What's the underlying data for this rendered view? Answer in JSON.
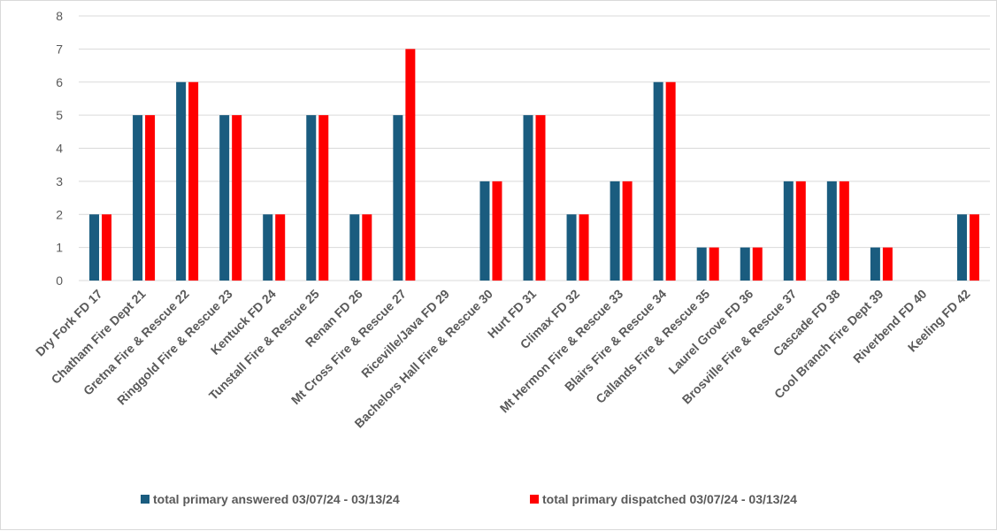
{
  "chart_data": {
    "type": "bar",
    "categories": [
      "Dry Fork FD  17",
      "Chatham Fire Dept 21",
      "Gretna Fire & Rescue  22",
      "Ringgold Fire & Rescue 23",
      "Kentuck FD 24",
      "Tunstall Fire & Rescue 25",
      "Renan FD 26",
      "Mt Cross Fire & Rescue 27",
      "Riceville/Java FD 29",
      "Bachelors Hall Fire & Rescue 30",
      "Hurt FD 31",
      "Climax FD  32",
      "Mt Hermon Fire & Rescue 33",
      "Blairs Fire & Rescue 34",
      "Callands Fire & Rescue 35",
      "Laurel Grove FD 36",
      "Brosville Fire & Rescue 37",
      "Cascade FD 38",
      "Cool Branch Fire Dept 39",
      "Riverbend FD 40",
      "Keeling FD 42"
    ],
    "series": [
      {
        "name": "total primary answered 03/07/24 - 03/13/24",
        "color": "#1a5c7f",
        "values": [
          2,
          5,
          6,
          5,
          2,
          5,
          2,
          5,
          0,
          3,
          5,
          2,
          3,
          6,
          1,
          1,
          3,
          3,
          1,
          0,
          2
        ]
      },
      {
        "name": "total primary dispatched 03/07/24 - 03/13/24",
        "color": "#ff0000",
        "values": [
          2,
          5,
          6,
          5,
          2,
          5,
          2,
          7,
          0,
          3,
          5,
          2,
          3,
          6,
          1,
          1,
          3,
          3,
          1,
          0,
          2
        ]
      }
    ],
    "ylim": [
      0,
      8
    ],
    "yticks": [
      0,
      1,
      2,
      3,
      4,
      5,
      6,
      7,
      8
    ],
    "grid": true,
    "legend_position": "bottom",
    "gridline_color": "#d9d9d9"
  }
}
